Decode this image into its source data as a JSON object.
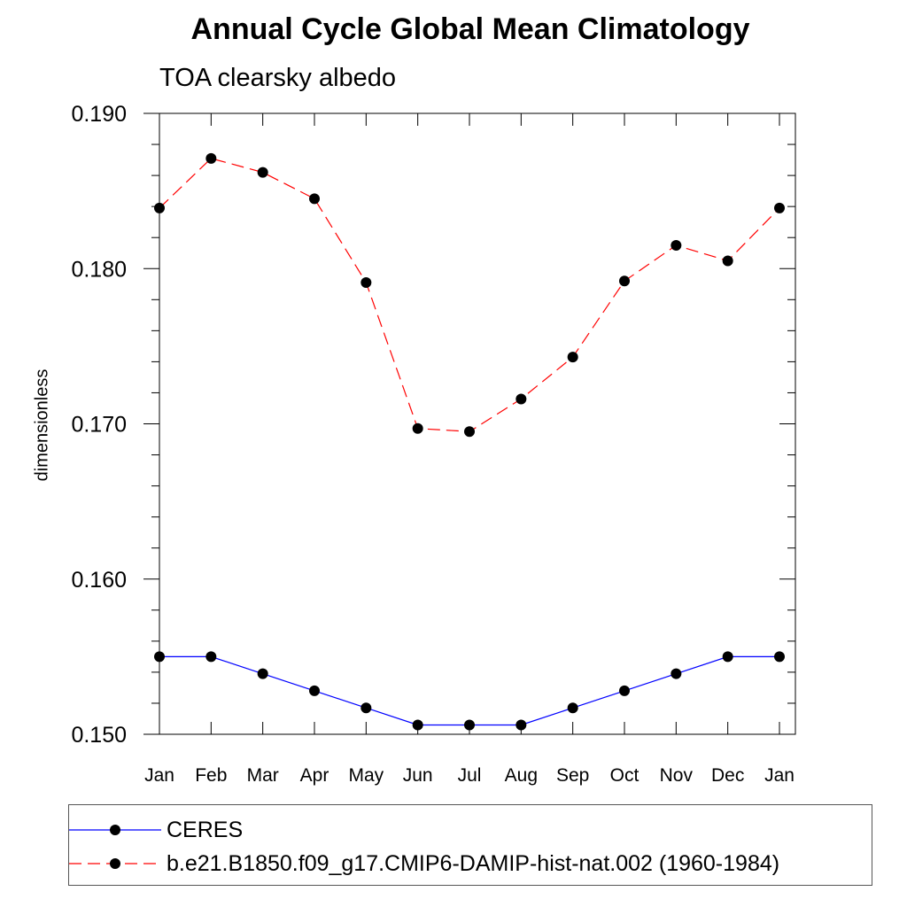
{
  "chart_data": {
    "type": "line",
    "title": "Annual Cycle Global Mean Climatology",
    "subtitle": "TOA clearsky albedo",
    "xlabel": "",
    "ylabel": "dimensionless",
    "categories": [
      "Jan",
      "Feb",
      "Mar",
      "Apr",
      "May",
      "Jun",
      "Jul",
      "Aug",
      "Sep",
      "Oct",
      "Nov",
      "Dec",
      "Jan"
    ],
    "ylim": [
      0.15,
      0.19
    ],
    "yticks": [
      "0.150",
      "0.160",
      "0.170",
      "0.180",
      "0.190"
    ],
    "grid": false,
    "legend_position": "bottom",
    "series": [
      {
        "name": "CERES",
        "color": "#0000ff",
        "line_style": "solid",
        "marker": "filled-circle",
        "values": [
          0.155,
          0.155,
          0.1539,
          0.1528,
          0.1517,
          0.1506,
          0.1506,
          0.1506,
          0.1517,
          0.1528,
          0.1539,
          0.155,
          0.155
        ]
      },
      {
        "name": "b.e21.B1850.f09_g17.CMIP6-DAMIP-hist-nat.002 (1960-1984)",
        "color": "#ff0000",
        "line_style": "dashed",
        "marker": "filled-circle",
        "values": [
          0.1839,
          0.1871,
          0.1862,
          0.1845,
          0.1791,
          0.1697,
          0.1695,
          0.1716,
          0.1743,
          0.1792,
          0.1815,
          0.1805,
          0.1839
        ]
      }
    ]
  }
}
